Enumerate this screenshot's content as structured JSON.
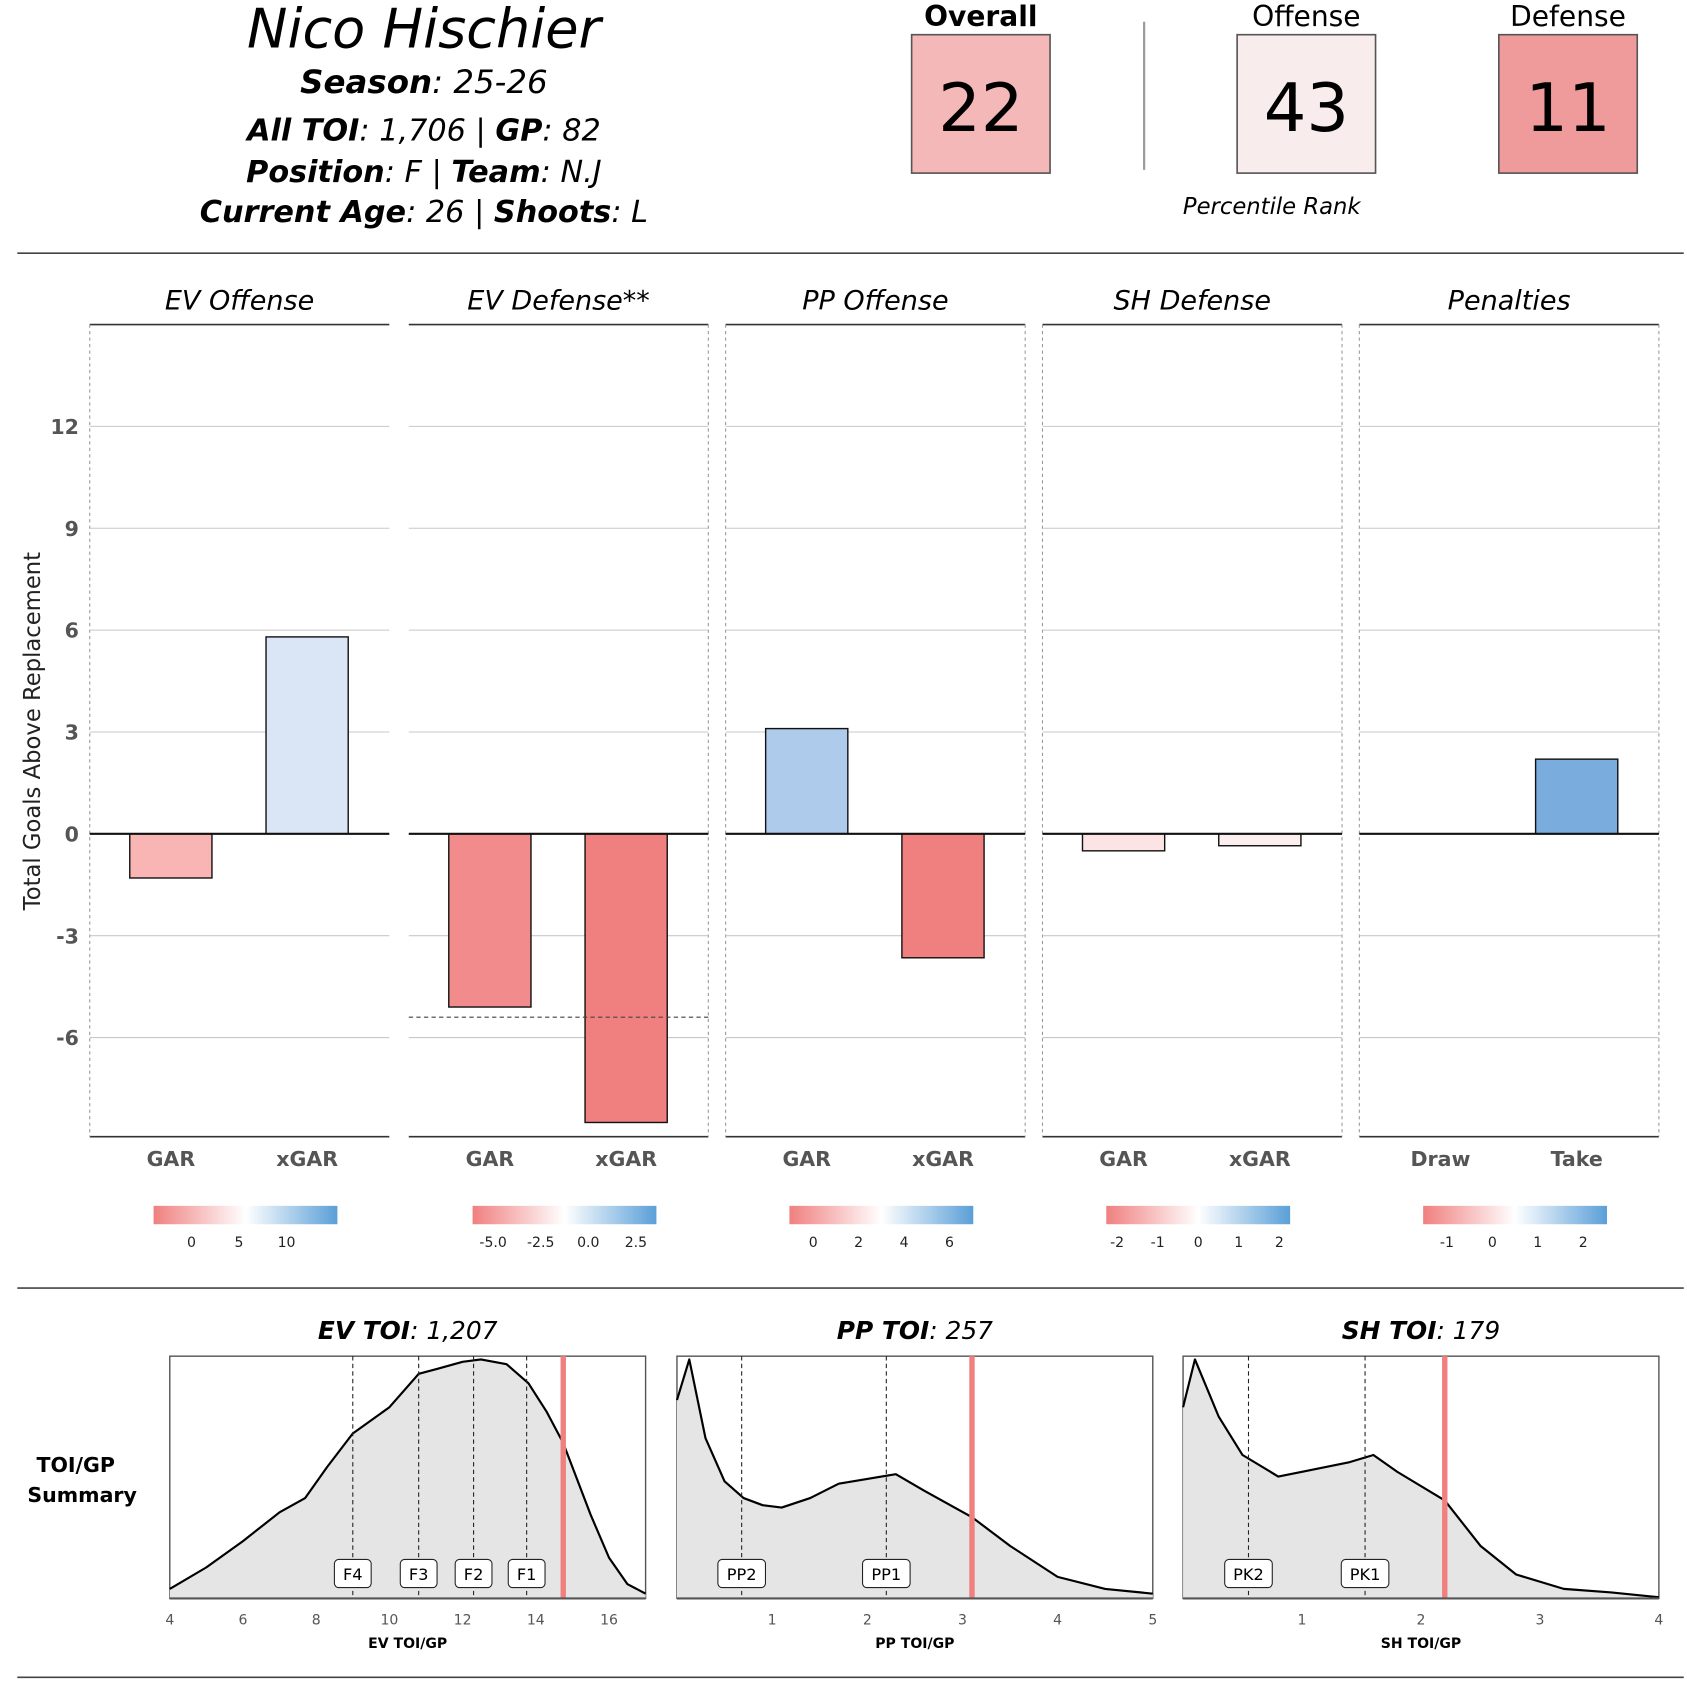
{
  "header": {
    "player_name": "Nico Hischier",
    "season_label": "Season",
    "season": "25-26",
    "toi_label": "All TOI",
    "toi": "1,706",
    "gp_label": "GP",
    "gp": "82",
    "position_label": "Position",
    "position": "F",
    "team_label": "Team",
    "team": "N.J",
    "age_label": "Current Age",
    "age": "26",
    "shoots_label": "Shoots",
    "shoots": "L",
    "sep": "|"
  },
  "ranks": {
    "caption": "Percentile Rank",
    "items": [
      {
        "label": "Overall",
        "value": "22",
        "color": "#f5b8b8"
      },
      {
        "label": "Offense",
        "value": "43",
        "color": "#f9ecec"
      },
      {
        "label": "Defense",
        "value": "11",
        "color": "#f09b9b"
      }
    ]
  },
  "chart_data": [
    {
      "type": "bar",
      "ylabel": "Total Goals Above Replacement",
      "yticks": [
        -6,
        -3,
        0,
        3,
        6,
        9,
        12
      ],
      "ylim": [
        -8.9,
        15
      ],
      "grid": true,
      "panels": [
        {
          "title": "EV Offense",
          "categories": [
            "GAR",
            "xGAR"
          ],
          "values": [
            -1.3,
            5.8
          ],
          "colors": [
            "#f9b4b4",
            "#dae6f6"
          ],
          "legend_ticks": [
            "0",
            "5",
            "10"
          ]
        },
        {
          "title": "EV Defense**",
          "categories": [
            "GAR",
            "xGAR"
          ],
          "values": [
            -5.1,
            -8.5
          ],
          "colors": [
            "#f28b8b",
            "#f08080"
          ],
          "reference_line": -5.4,
          "legend_ticks": [
            "-5.0",
            "-2.5",
            "0.0",
            "2.5"
          ]
        },
        {
          "title": "PP Offense",
          "categories": [
            "GAR",
            "xGAR"
          ],
          "values": [
            3.1,
            -3.65
          ],
          "colors": [
            "#aecbec",
            "#f08080"
          ],
          "legend_ticks": [
            "0",
            "2",
            "4",
            "6"
          ]
        },
        {
          "title": "SH Defense",
          "categories": [
            "GAR",
            "xGAR"
          ],
          "values": [
            -0.5,
            -0.35
          ],
          "colors": [
            "#fde4e4",
            "#fcefef"
          ],
          "legend_ticks": [
            "-2",
            "-1",
            "0",
            "1",
            "2"
          ]
        },
        {
          "title": "Penalties",
          "categories": [
            "Draw",
            "Take"
          ],
          "values": [
            0,
            2.2
          ],
          "colors": [
            "#ffffff",
            "#7aaddd"
          ],
          "legend_ticks": [
            "-1",
            "0",
            "1",
            "2"
          ]
        }
      ],
      "legend_gradient": [
        "#f08080",
        "#ffffff",
        "#5a9fd8"
      ]
    },
    {
      "type": "area",
      "row_label": [
        "TOI/GP",
        "Summary"
      ],
      "player_line_color": "#f08080",
      "panels": [
        {
          "title_label": "EV TOI",
          "title_value": "1,207",
          "xlabel": "EV TOI/GP",
          "xlim": [
            4,
            17
          ],
          "xticks": [
            4,
            6,
            8,
            10,
            12,
            14,
            16
          ],
          "markers": [
            {
              "label": "F4",
              "x": 9
            },
            {
              "label": "F3",
              "x": 10.8
            },
            {
              "label": "F2",
              "x": 12.3
            },
            {
              "label": "F1",
              "x": 13.75
            }
          ],
          "player_value": 14.75,
          "density": [
            [
              4,
              0.04
            ],
            [
              5,
              0.13
            ],
            [
              6,
              0.24
            ],
            [
              7,
              0.36
            ],
            [
              7.7,
              0.42
            ],
            [
              8.3,
              0.55
            ],
            [
              9,
              0.69
            ],
            [
              10,
              0.8
            ],
            [
              10.8,
              0.94
            ],
            [
              11.3,
              0.96
            ],
            [
              12,
              0.99
            ],
            [
              12.5,
              1.0
            ],
            [
              13.2,
              0.98
            ],
            [
              13.8,
              0.9
            ],
            [
              14.3,
              0.78
            ],
            [
              14.75,
              0.65
            ],
            [
              15.5,
              0.35
            ],
            [
              16,
              0.17
            ],
            [
              16.5,
              0.06
            ],
            [
              17,
              0.02
            ]
          ]
        },
        {
          "title_label": "PP TOI",
          "title_value": "257",
          "xlabel": "PP TOI/GP",
          "xlim": [
            0,
            5
          ],
          "xticks": [
            1,
            2,
            3,
            4,
            5
          ],
          "markers": [
            {
              "label": "PP2",
              "x": 0.68
            },
            {
              "label": "PP1",
              "x": 2.2
            }
          ],
          "player_value": 3.1,
          "density": [
            [
              0,
              0.83
            ],
            [
              0.13,
              1.0
            ],
            [
              0.3,
              0.67
            ],
            [
              0.5,
              0.49
            ],
            [
              0.7,
              0.42
            ],
            [
              0.9,
              0.39
            ],
            [
              1.1,
              0.38
            ],
            [
              1.4,
              0.42
            ],
            [
              1.7,
              0.48
            ],
            [
              2.0,
              0.5
            ],
            [
              2.3,
              0.52
            ],
            [
              2.6,
              0.45
            ],
            [
              3.1,
              0.34
            ],
            [
              3.5,
              0.22
            ],
            [
              4,
              0.09
            ],
            [
              4.5,
              0.04
            ],
            [
              5,
              0.02
            ]
          ]
        },
        {
          "title_label": "SH TOI",
          "title_value": "179",
          "xlabel": "SH TOI/GP",
          "xlim": [
            0,
            4
          ],
          "xticks": [
            1,
            2,
            3,
            4
          ],
          "markers": [
            {
              "label": "PK2",
              "x": 0.55
            },
            {
              "label": "PK1",
              "x": 1.53
            }
          ],
          "player_value": 2.2,
          "density": [
            [
              0,
              0.8
            ],
            [
              0.1,
              1.0
            ],
            [
              0.3,
              0.76
            ],
            [
              0.5,
              0.6
            ],
            [
              0.8,
              0.51
            ],
            [
              1.0,
              0.53
            ],
            [
              1.4,
              0.57
            ],
            [
              1.6,
              0.6
            ],
            [
              1.8,
              0.53
            ],
            [
              2.2,
              0.41
            ],
            [
              2.5,
              0.22
            ],
            [
              2.8,
              0.1
            ],
            [
              3.2,
              0.04
            ],
            [
              3.6,
              0.025
            ],
            [
              4,
              0.005
            ]
          ]
        }
      ]
    }
  ]
}
